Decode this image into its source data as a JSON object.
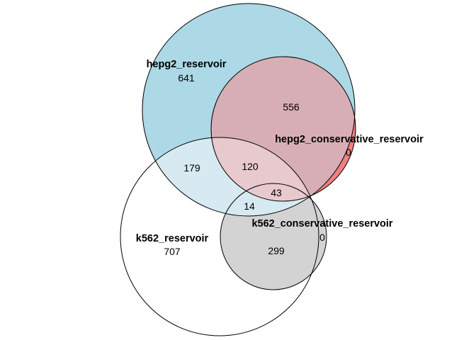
{
  "diagram": {
    "type": "euler",
    "sets": [
      {
        "id": "hepg2_reservoir",
        "label": "hepg2_reservoir",
        "color": "#ADD8E6"
      },
      {
        "id": "hepg2_conservative_reservoir",
        "label": "hepg2_conservative_reservoir",
        "color": "#F08080"
      },
      {
        "id": "k562_reservoir",
        "label": "k562_reservoir",
        "color": "#FFFFFF"
      },
      {
        "id": "k562_conservative_reservoir",
        "label": "k562_conservative_reservoir",
        "color": "#D3D3D3"
      }
    ],
    "regions": {
      "hepg2_only": "641",
      "hepg2_and_hepg2cons": "556",
      "hepg2cons_only": "0",
      "hepg2_and_k562": "179",
      "hepg2_hepg2cons_k562": "120",
      "all_four": "43",
      "hepg2_k562_k562cons": "14",
      "k562_only": "707",
      "k562_and_k562cons": "299",
      "k562cons_only": "0"
    }
  }
}
